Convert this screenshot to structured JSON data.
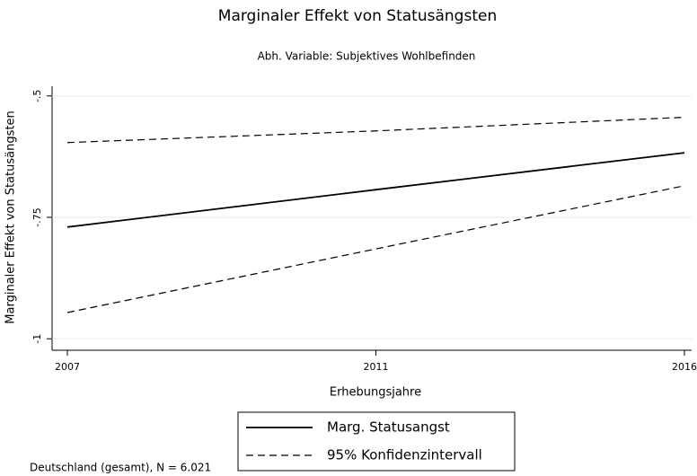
{
  "chart_data": {
    "type": "line",
    "title": "Marginaler Effekt von Statusängsten",
    "subtitle": "Abh. Variable: Subjektives Wohlbefinden",
    "x_label": "Erhebungsjahre",
    "y_label": "Marginaler Effekt von Statusängsten",
    "note": "Deutschland (gesamt), N = 6.021",
    "categories": [
      "2007",
      "2011",
      "2016"
    ],
    "series": [
      {
        "name": "Marg. Statusangst",
        "color": "#000000",
        "dashed": false,
        "values": [
          -0.77,
          -0.693,
          -0.617
        ]
      },
      {
        "name": "95% Konfidenzintervall",
        "color": "#000000",
        "dashed": true,
        "values": [
          -0.596,
          -0.572,
          -0.544
        ]
      },
      {
        "color": "#000000",
        "dashed": true,
        "values": [
          -0.946,
          -0.815,
          -0.685
        ]
      }
    ],
    "ylim": [
      -1.02,
      -0.48
    ],
    "yticks": [
      {
        "value": -1,
        "label": "-1"
      },
      {
        "value": -0.75,
        "label": "-.75"
      },
      {
        "value": -0.5,
        "label": "-.5"
      }
    ],
    "grid": true
  }
}
